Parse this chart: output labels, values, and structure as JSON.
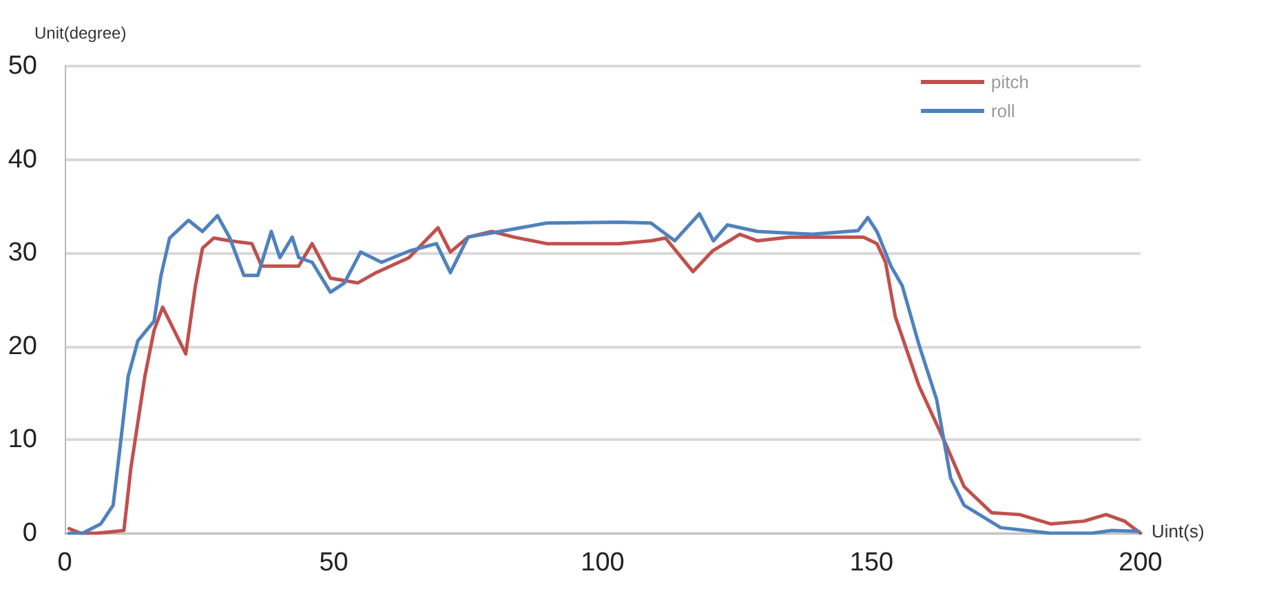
{
  "chart_data": {
    "type": "line",
    "xlabel": "Uint(s)",
    "ylabel": "Unit(degree)",
    "xlim": [
      0,
      200
    ],
    "xticks": [
      0,
      50,
      100,
      150,
      200
    ],
    "ylim": [
      0,
      50
    ],
    "yticks": [
      0,
      10,
      20,
      30,
      40,
      50
    ],
    "grid": "y",
    "legend": "top right",
    "marker": "none",
    "line_style": "solid",
    "series": [
      {
        "name": "pitch",
        "color": "#c0504d",
        "x": [
          0.8,
          3,
          6,
          11,
          12.3,
          14.9,
          16.6,
          18.2,
          22.5,
          24.3,
          25.6,
          27.7,
          30.7,
          34.8,
          36.6,
          43.5,
          46,
          49.4,
          54.5,
          57.9,
          64,
          69.4,
          71.7,
          75,
          79.4,
          83.5,
          89.6,
          103,
          109,
          111.7,
          116.8,
          120.4,
          125.5,
          128.8,
          134.7,
          148.5,
          151,
          152.6,
          154.4,
          158.8,
          163.9,
          167.2,
          172.3,
          177.5,
          183.3,
          189.5,
          193.6,
          197,
          200
        ],
        "values": [
          0.5,
          0,
          0,
          0.3,
          7,
          16.8,
          21.7,
          24.2,
          19.2,
          26.5,
          30.5,
          31.6,
          31.3,
          31,
          28.6,
          28.6,
          31,
          27.3,
          26.8,
          27.9,
          29.5,
          32.7,
          30.1,
          31.7,
          32.3,
          31.7,
          31,
          31,
          31.3,
          31.6,
          28,
          30.2,
          32,
          31.3,
          31.7,
          31.7,
          31,
          29,
          23.2,
          15.8,
          9.4,
          5,
          2.2,
          2,
          1,
          1.3,
          2,
          1.3,
          0
        ]
      },
      {
        "name": "roll",
        "color": "#4f81bd",
        "x": [
          0.8,
          3.3,
          6.7,
          9,
          10.2,
          11.8,
          13.6,
          16.6,
          17.9,
          19.5,
          23,
          25.6,
          28.4,
          30.7,
          33.3,
          35.9,
          38.4,
          40,
          42.3,
          43.5,
          46,
          49.4,
          52,
          55,
          58.9,
          64,
          69.1,
          71.7,
          75,
          80.9,
          89.6,
          103.2,
          109,
          113.4,
          118,
          120.6,
          123.2,
          128.8,
          139,
          147.5,
          149.3,
          151,
          153.6,
          155.7,
          158.8,
          162.1,
          164.7,
          167.2,
          174,
          183.3,
          191,
          194.6,
          199.7
        ],
        "values": [
          0,
          0,
          1,
          3,
          8.8,
          16.8,
          20.6,
          22.7,
          27.6,
          31.6,
          33.5,
          32.3,
          34,
          31.6,
          27.6,
          27.6,
          32.3,
          29.5,
          31.7,
          29.5,
          29,
          25.8,
          26.8,
          30.1,
          29,
          30.2,
          31,
          27.9,
          31.7,
          32.3,
          33.2,
          33.3,
          33.2,
          31.3,
          34.2,
          31.3,
          33,
          32.3,
          32,
          32.4,
          33.8,
          32.3,
          28.6,
          26.5,
          20.2,
          14.3,
          5.9,
          3,
          0.6,
          0,
          0,
          0.3,
          0.2
        ]
      }
    ]
  }
}
